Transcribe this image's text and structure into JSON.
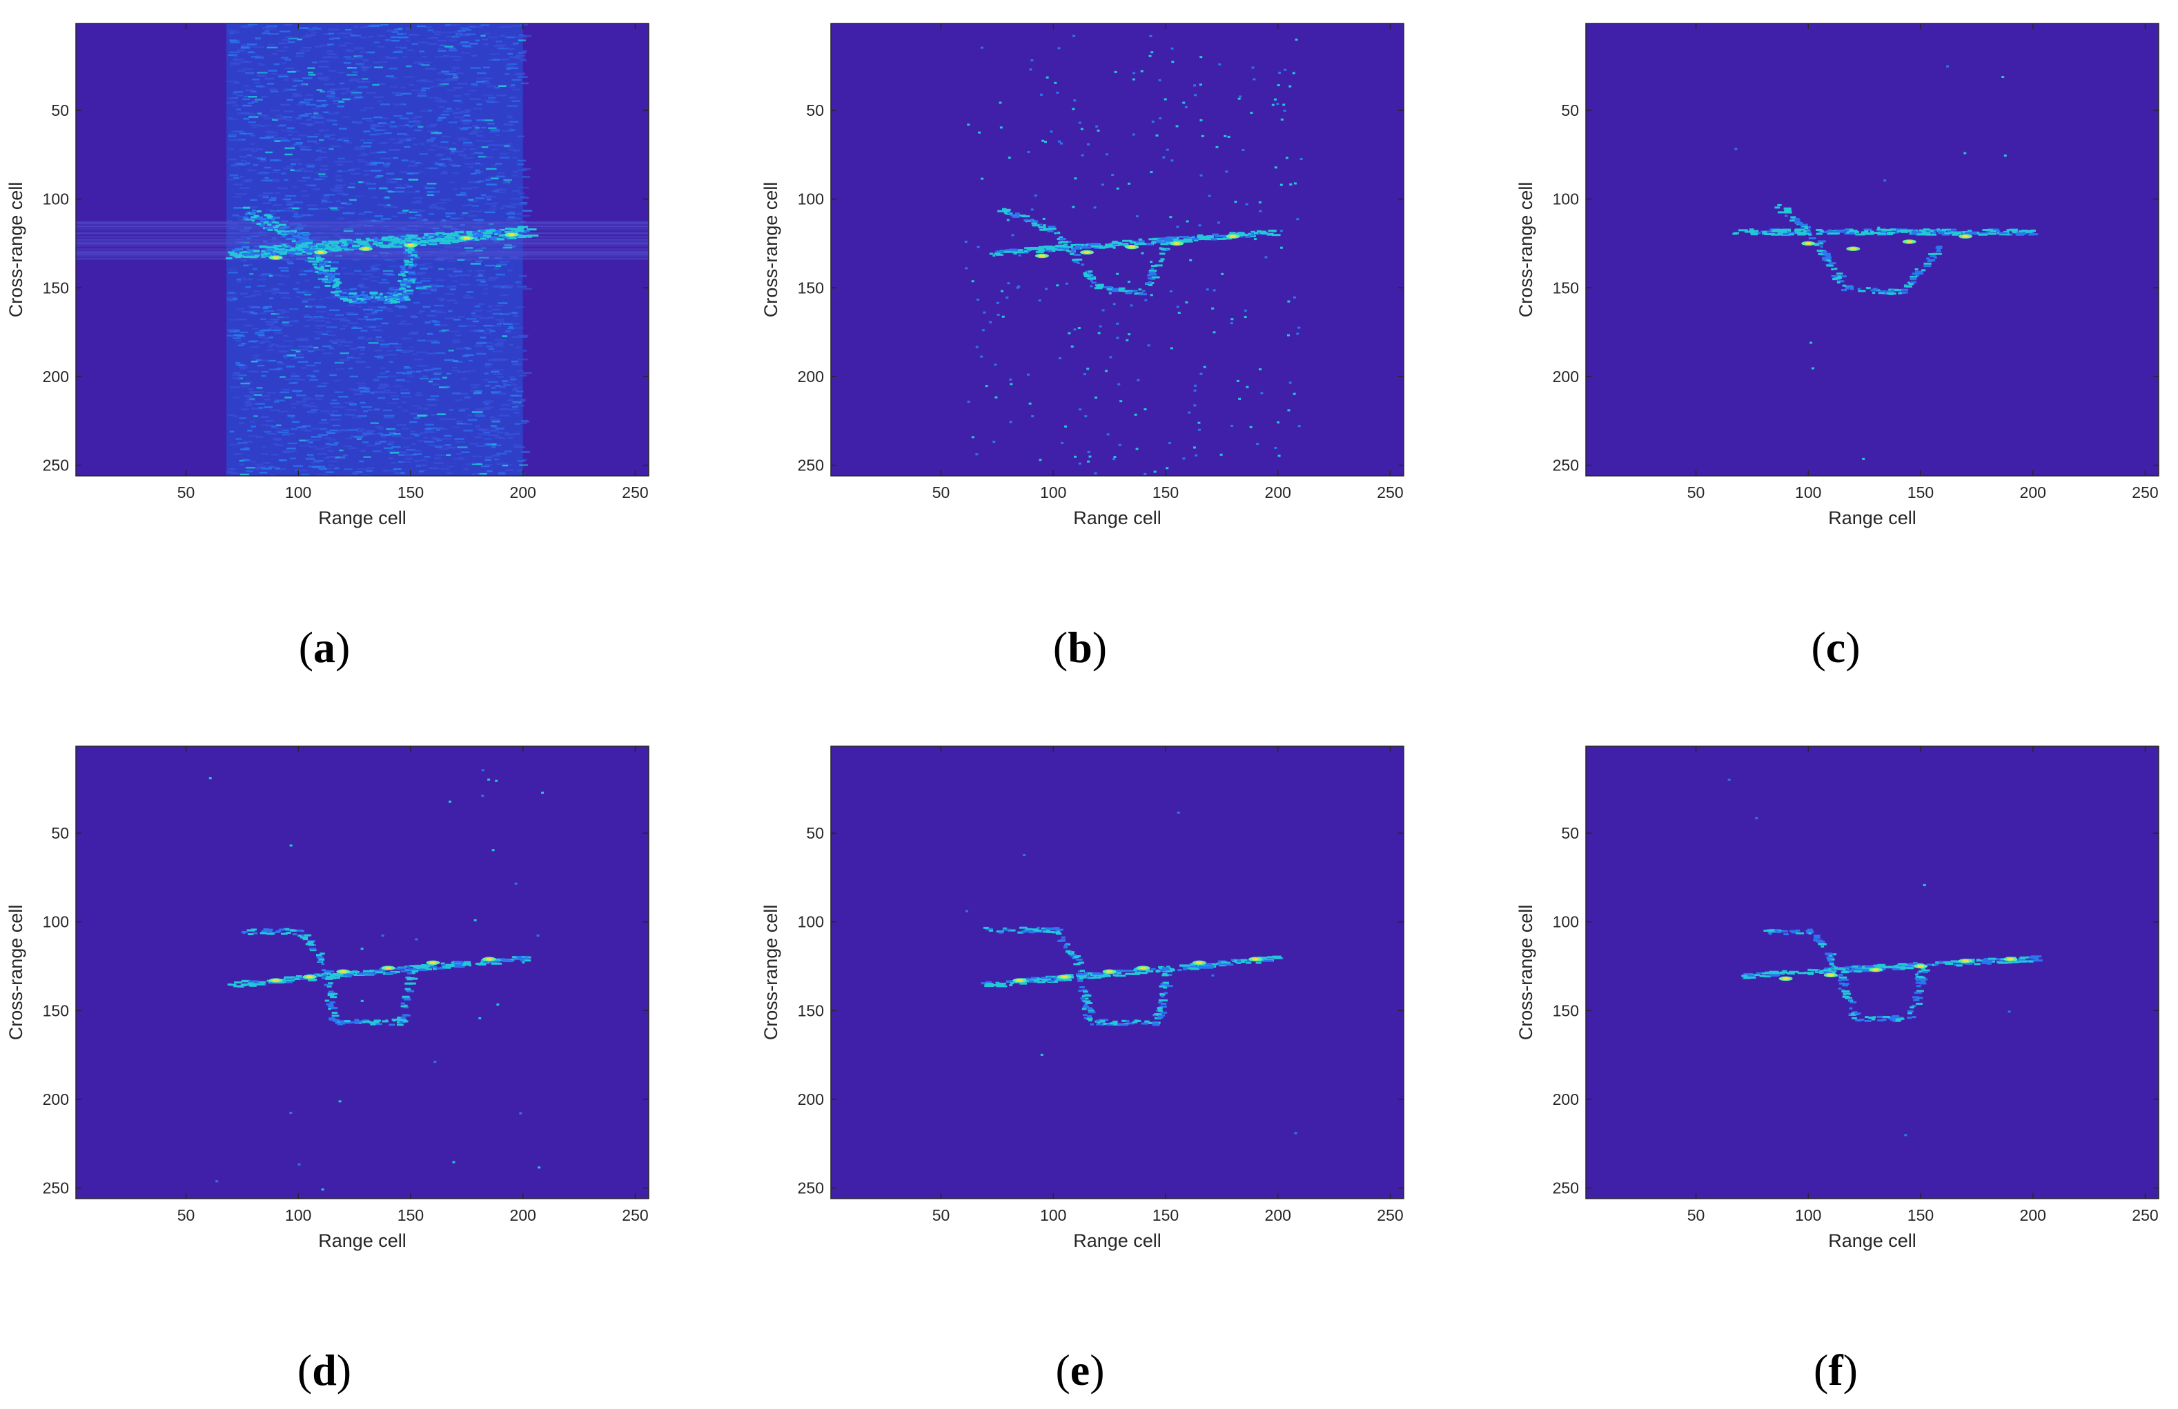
{
  "colors": {
    "background": "#4020a8",
    "spot_faint": "#2a78f0",
    "spot_medium": "#22c8d8",
    "spot_strong": "#60f0a0",
    "spot_peak": "#f0e040",
    "axis": "#262626"
  },
  "chart_data": [
    {
      "id": "a",
      "panel_label": "a",
      "type": "heatmap",
      "xlabel": "Range cell",
      "ylabel": "Cross-range cell",
      "xlim": [
        1,
        256
      ],
      "ylim": [
        256,
        1
      ],
      "xticks": [
        50,
        100,
        150,
        200,
        250
      ],
      "yticks": [
        50,
        100,
        150,
        200,
        250
      ],
      "noise_band": [
        68,
        200
      ],
      "target": {
        "fuselage": [
          [
            70,
            130
          ],
          [
            200,
            118
          ]
        ],
        "wing": [
          [
            75,
            105
          ],
          [
            100,
            122
          ],
          [
            120,
            155
          ],
          [
            145,
            155
          ],
          [
            150,
            122
          ]
        ],
        "peaks": [
          [
            90,
            133
          ],
          [
            110,
            130
          ],
          [
            130,
            128
          ],
          [
            150,
            126
          ],
          [
            175,
            122
          ],
          [
            195,
            120
          ]
        ]
      },
      "clutter_level": "heavy"
    },
    {
      "id": "b",
      "panel_label": "b",
      "type": "heatmap",
      "xlabel": "Range cell",
      "ylabel": "Cross-range cell",
      "xlim": [
        1,
        256
      ],
      "ylim": [
        256,
        1
      ],
      "xticks": [
        50,
        100,
        150,
        200,
        250
      ],
      "yticks": [
        50,
        100,
        150,
        200,
        250
      ],
      "target": {
        "fuselage": [
          [
            70,
            130
          ],
          [
            200,
            118
          ]
        ],
        "wing": [
          [
            75,
            105
          ],
          [
            100,
            118
          ],
          [
            120,
            150
          ],
          [
            140,
            152
          ],
          [
            150,
            122
          ]
        ],
        "peaks": [
          [
            95,
            132
          ],
          [
            115,
            130
          ],
          [
            135,
            127
          ],
          [
            155,
            125
          ],
          [
            180,
            121
          ]
        ]
      },
      "clutter_level": "scattered"
    },
    {
      "id": "c",
      "panel_label": "c",
      "type": "heatmap",
      "xlabel": "Range cell",
      "ylabel": "Cross-range cell",
      "xlim": [
        1,
        256
      ],
      "ylim": [
        256,
        1
      ],
      "xticks": [
        50,
        100,
        150,
        200,
        250
      ],
      "yticks": [
        50,
        100,
        150,
        200,
        250
      ],
      "target": {
        "fuselage": [
          [
            65,
            118
          ],
          [
            200,
            118
          ]
        ],
        "wing": [
          [
            85,
            103
          ],
          [
            100,
            118
          ],
          [
            115,
            150
          ],
          [
            140,
            152
          ],
          [
            160,
            125
          ]
        ],
        "peaks": [
          [
            100,
            125
          ],
          [
            120,
            128
          ],
          [
            145,
            124
          ],
          [
            170,
            121
          ]
        ]
      },
      "clutter_level": "sparse"
    },
    {
      "id": "d",
      "panel_label": "d",
      "type": "heatmap",
      "xlabel": "Range cell",
      "ylabel": "Cross-range cell",
      "xlim": [
        1,
        256
      ],
      "ylim": [
        256,
        1
      ],
      "xticks": [
        50,
        100,
        150,
        200,
        250
      ],
      "yticks": [
        50,
        100,
        150,
        200,
        250
      ],
      "target": {
        "fuselage": [
          [
            68,
            135
          ],
          [
            200,
            120
          ]
        ],
        "wing": [
          [
            75,
            105
          ],
          [
            100,
            105
          ],
          [
            110,
            122
          ],
          [
            115,
            156
          ],
          [
            145,
            156
          ],
          [
            150,
            125
          ]
        ],
        "peaks": [
          [
            90,
            133
          ],
          [
            105,
            131
          ],
          [
            120,
            128
          ],
          [
            140,
            126
          ],
          [
            160,
            123
          ],
          [
            185,
            121
          ]
        ]
      },
      "clutter_level": "light"
    },
    {
      "id": "e",
      "panel_label": "e",
      "type": "heatmap",
      "xlabel": "Range cell",
      "ylabel": "Cross-range cell",
      "xlim": [
        1,
        256
      ],
      "ylim": [
        256,
        1
      ],
      "xticks": [
        50,
        100,
        150,
        200,
        250
      ],
      "yticks": [
        50,
        100,
        150,
        200,
        250
      ],
      "target": {
        "fuselage": [
          [
            68,
            135
          ],
          [
            200,
            120
          ]
        ],
        "wing": [
          [
            70,
            104
          ],
          [
            100,
            104
          ],
          [
            110,
            122
          ],
          [
            115,
            156
          ],
          [
            145,
            156
          ],
          [
            150,
            125
          ]
        ],
        "peaks": [
          [
            85,
            133
          ],
          [
            105,
            131
          ],
          [
            125,
            128
          ],
          [
            140,
            126
          ],
          [
            165,
            123
          ],
          [
            190,
            121
          ]
        ]
      },
      "clutter_level": "minimal"
    },
    {
      "id": "f",
      "panel_label": "f",
      "type": "heatmap",
      "xlabel": "Range cell",
      "ylabel": "Cross-range cell",
      "xlim": [
        1,
        256
      ],
      "ylim": [
        256,
        1
      ],
      "xticks": [
        50,
        100,
        150,
        200,
        250
      ],
      "yticks": [
        50,
        100,
        150,
        200,
        250
      ],
      "target": {
        "fuselage": [
          [
            68,
            130
          ],
          [
            200,
            120
          ]
        ],
        "wing": [
          [
            80,
            105
          ],
          [
            100,
            105
          ],
          [
            110,
            122
          ],
          [
            120,
            154
          ],
          [
            145,
            154
          ],
          [
            150,
            125
          ]
        ],
        "peaks": [
          [
            90,
            132
          ],
          [
            110,
            130
          ],
          [
            130,
            127
          ],
          [
            150,
            125
          ],
          [
            170,
            122
          ],
          [
            190,
            121
          ]
        ]
      },
      "clutter_level": "minimal"
    }
  ]
}
